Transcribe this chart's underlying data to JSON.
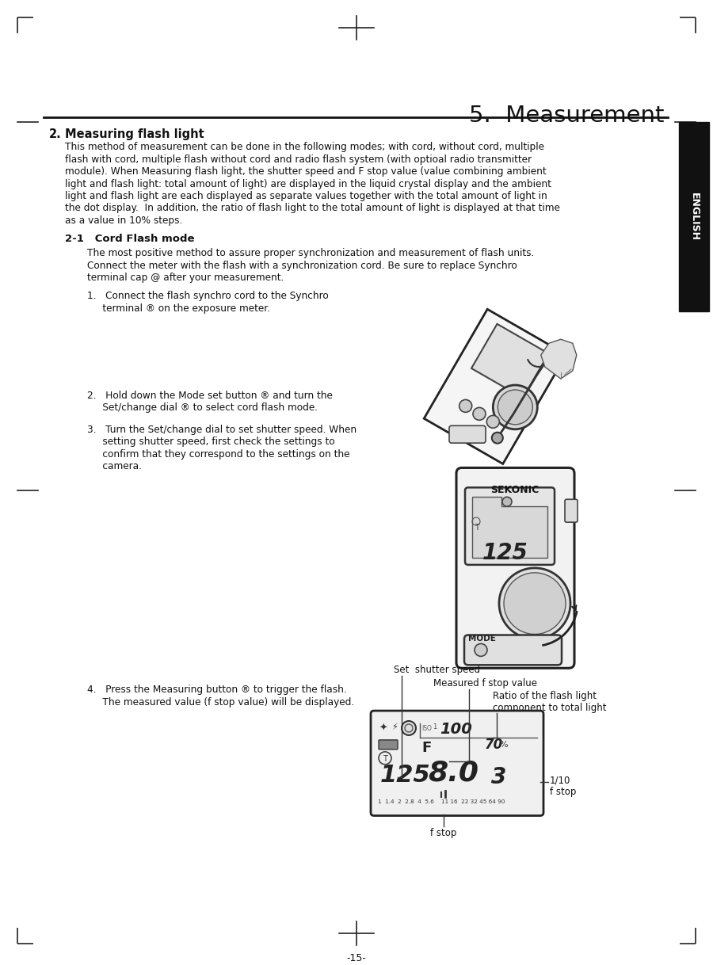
{
  "bg_color": "#ffffff",
  "title": "5.  Measurement",
  "section_num": "2.",
  "section_title": "Measuring flash light",
  "section_body_lines": [
    "This method of measurement can be done in the following modes; with cord, without cord, multiple",
    "flash with cord, multiple flash without cord and radio flash system (with optioal radio transmitter",
    "module). When Measuring flash light, the shutter speed and F stop value (value combining ambient",
    "light and flash light: total amount of light) are displayed in the liquid crystal display and the ambient",
    "light and flash light are each displayed as separate values together with the total amount of light in",
    "the dot display.  In addition, the ratio of flash light to the total amount of light is displayed at that time",
    "as a value in 10% steps."
  ],
  "sub_section": "2-1   Cord Flash mode",
  "sub_body_lines": [
    "The most positive method to assure proper synchronization and measurement of flash units.",
    "Connect the meter with the flash with a synchronization cord. Be sure to replace Synchro",
    "terminal cap @ after your measurement."
  ],
  "step1_lines": [
    "1.   Connect the flash synchro cord to the Synchro",
    "     terminal ® on the exposure meter."
  ],
  "step2_lines": [
    "2.   Hold down the Mode set button ® and turn the",
    "     Set/change dial ® to select cord flash mode."
  ],
  "step3_lines": [
    "3.   Turn the Set/change dial to set shutter speed. When",
    "     setting shutter speed, first check the settings to",
    "     confirm that they correspond to the settings on the",
    "     camera."
  ],
  "step4_lines": [
    "4.   Press the Measuring button ® to trigger the flash.",
    "     The measured value (f stop value) will be displayed."
  ],
  "label_set_shutter": "Set  shutter speed",
  "label_measured": "Measured f stop value",
  "label_ratio1": "Ratio of the flash light",
  "label_ratio2": "component to total light",
  "label_110a": "1/10",
  "label_110b": "f stop",
  "label_fstop": "f stop",
  "english_tab": "ENGLISH",
  "page_num": "-15-",
  "text_color": "#111111",
  "black": "#000000",
  "white": "#ffffff"
}
